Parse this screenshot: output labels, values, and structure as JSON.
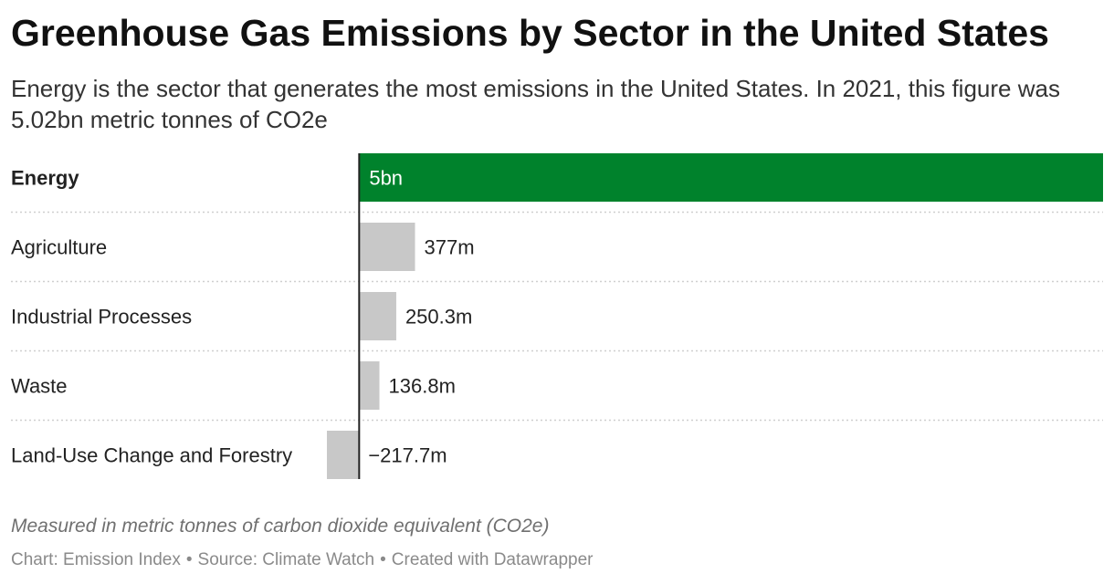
{
  "title": "Greenhouse Gas Emissions by Sector in the United States",
  "subtitle": "Energy is the sector that generates the most emissions in the United States. In 2021, this figure was 5.02bn metric tonnes of CO2e",
  "notes": "Measured in metric tonnes of carbon dioxide equivalent (CO2e)",
  "footer": {
    "chart": "Chart: Emission Index",
    "separator": "•",
    "source": "Source: Climate Watch",
    "credit": "Created with Datawrapper"
  },
  "colors": {
    "highlight": "#00822c",
    "default_bar": "#c8c8c8",
    "axis": "#222222",
    "row_divider": "#cfcfcf"
  },
  "chart_data": {
    "type": "bar",
    "orientation": "horizontal",
    "categories": [
      "Energy",
      "Agriculture",
      "Industrial Processes",
      "Waste",
      "Land-Use Change and Forestry"
    ],
    "values": [
      5020000000,
      377000000,
      250300000,
      136800000,
      -217700000
    ],
    "value_labels": [
      "5bn",
      "377m",
      "250.3m",
      "136.8m",
      "−217.7m"
    ],
    "highlighted": "Energy",
    "xlim": [
      -217700000,
      5020000000
    ],
    "grid": false,
    "legend": "none"
  }
}
